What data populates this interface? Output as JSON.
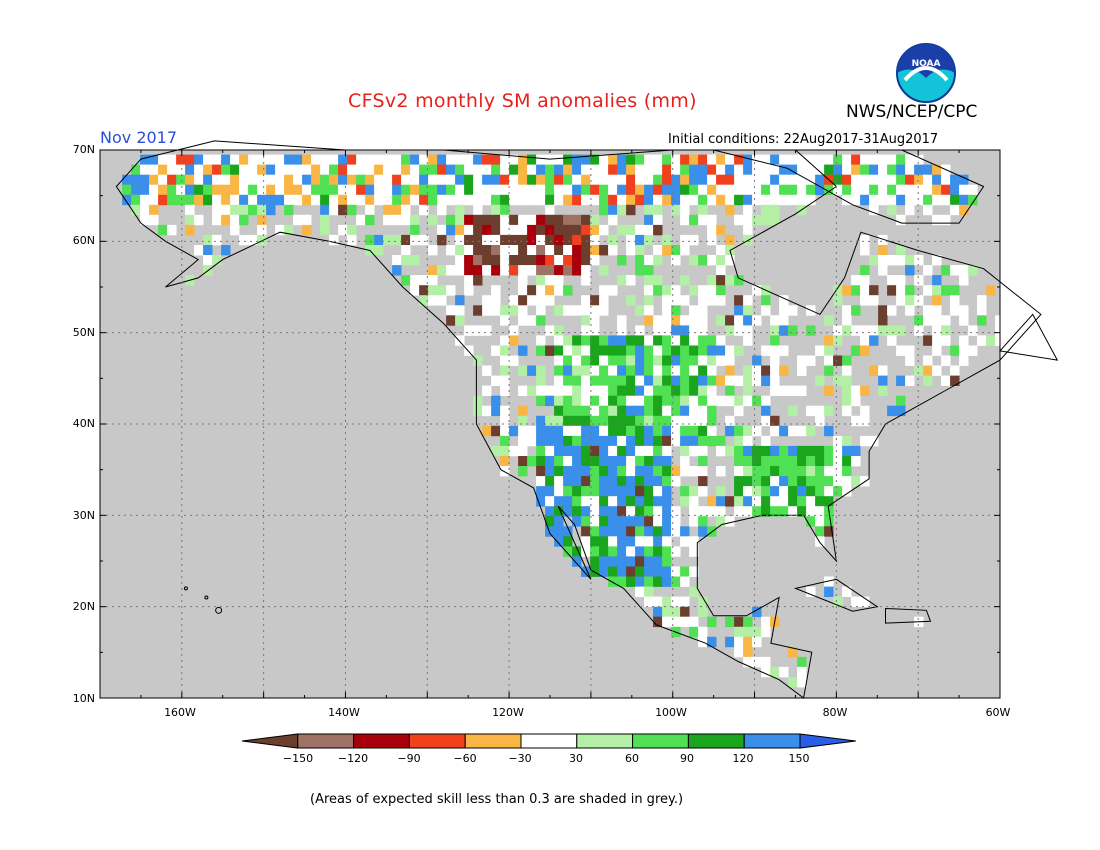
{
  "title": "CFSv2 monthly SM anomalies (mm)",
  "agency": "NWS/NCEP/CPC",
  "logo_text": "NOAA",
  "valid_month": "Nov 2017",
  "initial_conditions": "Initial conditions: 22Aug2017-31Aug2017",
  "note": "(Areas of expected skill less than 0.3 are shaded in grey.)",
  "map": {
    "lon_range": [
      -170,
      -60
    ],
    "lat_range": [
      10,
      70
    ],
    "background_color": "#c8c8c8",
    "lat_labels": [
      "70N",
      "60N",
      "50N",
      "40N",
      "30N",
      "20N",
      "10N"
    ],
    "lon_labels": [
      "160W",
      "140W",
      "120W",
      "100W",
      "80W",
      "60W"
    ]
  },
  "colorbar": {
    "labels": [
      "−150",
      "−120",
      "−90",
      "−60",
      "−30",
      "30",
      "60",
      "90",
      "120",
      "150"
    ],
    "colors": [
      "#6b3e2e",
      "#9e7264",
      "#a8000b",
      "#f0401e",
      "#f9b645",
      "#ffffff",
      "#b3f0a5",
      "#50e054",
      "#1aa51d",
      "#3a8fea",
      "#2a5ee6"
    ]
  }
}
